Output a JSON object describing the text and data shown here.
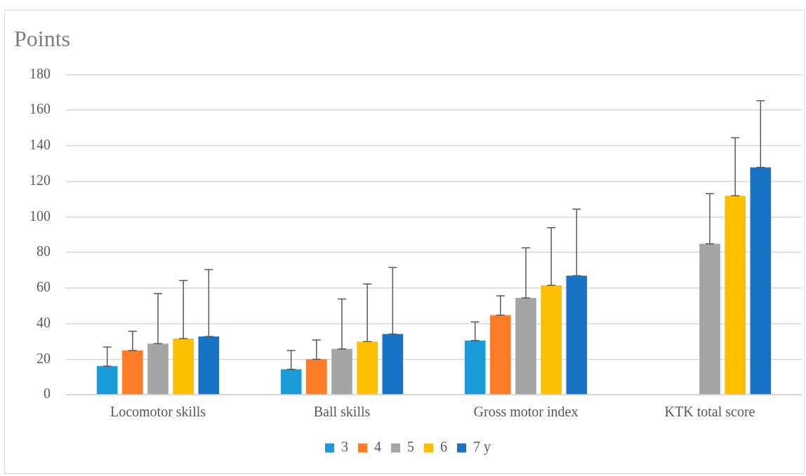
{
  "chart_data": {
    "type": "bar",
    "title": "Points",
    "categories": [
      "Locomotor skills",
      "Ball skills",
      "Gross motor index",
      "KTK total score"
    ],
    "series": [
      {
        "name": "3",
        "color": "#1a9bd7",
        "values": [
          16.1,
          14.3,
          30.5,
          null
        ],
        "errors": [
          [
            16.1,
            26.8
          ],
          [
            14.3,
            24.8
          ],
          [
            30.5,
            40.9
          ],
          null
        ]
      },
      {
        "name": "4",
        "color": "#fe7c28",
        "values": [
          24.8,
          19.9,
          44.7,
          null
        ],
        "errors": [
          [
            24.8,
            35.7
          ],
          [
            19.9,
            30.7
          ],
          [
            44.7,
            55.6
          ],
          null
        ]
      },
      {
        "name": "5",
        "color": "#a5a5a5",
        "values": [
          28.7,
          25.7,
          54.4,
          84.9
        ],
        "errors": [
          [
            28.7,
            56.9
          ],
          [
            25.7,
            53.8
          ],
          [
            54.4,
            82.6
          ],
          [
            84.9,
            113.0
          ]
        ]
      },
      {
        "name": "6",
        "color": "#fdc000",
        "values": [
          31.5,
          29.9,
          61.5,
          111.9
        ],
        "errors": [
          [
            31.5,
            64.2
          ],
          [
            29.9,
            62.3
          ],
          [
            61.5,
            93.9
          ],
          [
            111.9,
            144.5
          ]
        ]
      },
      {
        "name": "7 y",
        "color": "#1872c6",
        "values": [
          32.7,
          34.1,
          66.9,
          127.8
        ],
        "errors": [
          [
            32.7,
            70.4
          ],
          [
            34.1,
            71.6
          ],
          [
            66.9,
            104.4
          ],
          [
            127.8,
            165.3
          ]
        ]
      }
    ],
    "ylim": [
      0,
      180
    ],
    "yticks": [
      0,
      20,
      40,
      60,
      80,
      100,
      120,
      140,
      160,
      180
    ],
    "grid": "y",
    "legend": "bottom"
  }
}
